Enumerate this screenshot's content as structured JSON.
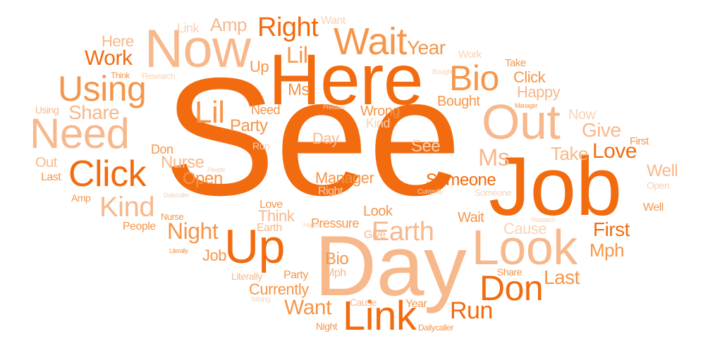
{
  "palette": {
    "dark": "#f26b0f",
    "mid": "#f5964a",
    "light": "#f7b88c",
    "pale": "#f9d2b4"
  },
  "words": [
    {
      "text": "See",
      "c": "dark"
    },
    {
      "text": "Here",
      "c": "dark"
    },
    {
      "text": "Day",
      "c": "light"
    },
    {
      "text": "Job",
      "c": "dark"
    },
    {
      "text": "Now",
      "c": "light"
    },
    {
      "text": "Look",
      "c": "light"
    },
    {
      "text": "Out",
      "c": "light"
    },
    {
      "text": "Need",
      "c": "light"
    },
    {
      "text": "Click",
      "c": "dark"
    },
    {
      "text": "Using",
      "c": "mid"
    },
    {
      "text": "Up",
      "c": "dark"
    },
    {
      "text": "Link",
      "c": "dark"
    },
    {
      "text": "Don",
      "c": "dark"
    },
    {
      "text": "Wait",
      "c": "mid"
    },
    {
      "text": "Bio",
      "c": "mid"
    },
    {
      "text": "Kind",
      "c": "light"
    },
    {
      "text": "Earth",
      "c": "light"
    },
    {
      "text": "Lil",
      "c": "mid"
    },
    {
      "text": "Right",
      "c": "dark"
    },
    {
      "text": "Night",
      "c": "mid"
    },
    {
      "text": "Run",
      "c": "dark"
    },
    {
      "text": "Ms",
      "c": "light"
    },
    {
      "text": "Want",
      "c": "mid"
    },
    {
      "text": "Lil",
      "c": "mid"
    },
    {
      "text": "Work",
      "c": "dark"
    },
    {
      "text": "Amp",
      "c": "light"
    },
    {
      "text": "Year",
      "c": "mid"
    },
    {
      "text": "Share",
      "c": "light"
    },
    {
      "text": "Love",
      "c": "dark"
    },
    {
      "text": "Give",
      "c": "light"
    },
    {
      "text": "First",
      "c": "dark"
    },
    {
      "text": "Take",
      "c": "light"
    },
    {
      "text": "Last",
      "c": "mid"
    },
    {
      "text": "Someone",
      "c": "dark"
    },
    {
      "text": "Mph",
      "c": "mid"
    },
    {
      "text": "See",
      "c": "pale"
    },
    {
      "text": "Nurse",
      "c": "light"
    },
    {
      "text": "Open",
      "c": "mid"
    },
    {
      "text": "Party",
      "c": "mid"
    },
    {
      "text": "Manager",
      "c": "mid"
    },
    {
      "text": "Cause",
      "c": "pale"
    },
    {
      "text": "Currently",
      "c": "mid"
    },
    {
      "text": "Well",
      "c": "light"
    },
    {
      "text": "Happy",
      "c": "light"
    },
    {
      "text": "Click",
      "c": "mid"
    },
    {
      "text": "Day",
      "c": "light"
    },
    {
      "text": "Wrong",
      "c": "mid"
    },
    {
      "text": "Bought",
      "c": "mid"
    },
    {
      "text": "Here",
      "c": "light"
    },
    {
      "text": "Up",
      "c": "mid"
    },
    {
      "text": "Link",
      "c": "pale"
    },
    {
      "text": "Want",
      "c": "pale"
    },
    {
      "text": "Ms",
      "c": "mid"
    },
    {
      "text": "Need",
      "c": "mid"
    },
    {
      "text": "Kind",
      "c": "pale"
    },
    {
      "text": "Now",
      "c": "pale"
    },
    {
      "text": "Think",
      "c": "light"
    },
    {
      "text": "Pressure",
      "c": "mid"
    },
    {
      "text": "Look",
      "c": "mid"
    },
    {
      "text": "Wait",
      "c": "mid"
    },
    {
      "text": "Job",
      "c": "mid"
    },
    {
      "text": "Bio",
      "c": "mid"
    },
    {
      "text": "Mph",
      "c": "light"
    },
    {
      "text": "Party",
      "c": "mid"
    },
    {
      "text": "Year",
      "c": "mid"
    },
    {
      "text": "Share",
      "c": "mid"
    },
    {
      "text": "Cause",
      "c": "light"
    },
    {
      "text": "Dailycaller",
      "c": "pale"
    },
    {
      "text": "Out",
      "c": "light"
    },
    {
      "text": "Last",
      "c": "mid"
    },
    {
      "text": "Amp",
      "c": "mid"
    },
    {
      "text": "People",
      "c": "mid"
    },
    {
      "text": "Nurse",
      "c": "mid"
    },
    {
      "text": "Love",
      "c": "mid"
    },
    {
      "text": "Earth",
      "c": "light"
    },
    {
      "text": "Give",
      "c": "light"
    },
    {
      "text": "Literally",
      "c": "light"
    },
    {
      "text": "Right",
      "c": "pale"
    },
    {
      "text": "Run",
      "c": "pale"
    },
    {
      "text": "Work",
      "c": "pale"
    },
    {
      "text": "Take",
      "c": "mid"
    },
    {
      "text": "First",
      "c": "mid"
    },
    {
      "text": "Well",
      "c": "mid"
    },
    {
      "text": "Open",
      "c": "pale"
    },
    {
      "text": "Someone",
      "c": "pale"
    },
    {
      "text": "Currently",
      "c": "pale"
    },
    {
      "text": "Using",
      "c": "light"
    },
    {
      "text": "Think",
      "c": "mid"
    },
    {
      "text": "Research",
      "c": "pale"
    },
    {
      "text": "Bought",
      "c": "pale"
    },
    {
      "text": "Manager",
      "c": "mid"
    },
    {
      "text": "Pressure",
      "c": "pale"
    },
    {
      "text": "Happy",
      "c": "pale"
    },
    {
      "text": "Research",
      "c": "pale"
    },
    {
      "text": "People",
      "c": "pale"
    },
    {
      "text": "Dailycaller",
      "c": "mid"
    },
    {
      "text": "Literally",
      "c": "mid"
    },
    {
      "text": "Wrong",
      "c": "pale"
    },
    {
      "text": "Night",
      "c": "mid"
    },
    {
      "text": "Don",
      "c": "mid"
    }
  ]
}
